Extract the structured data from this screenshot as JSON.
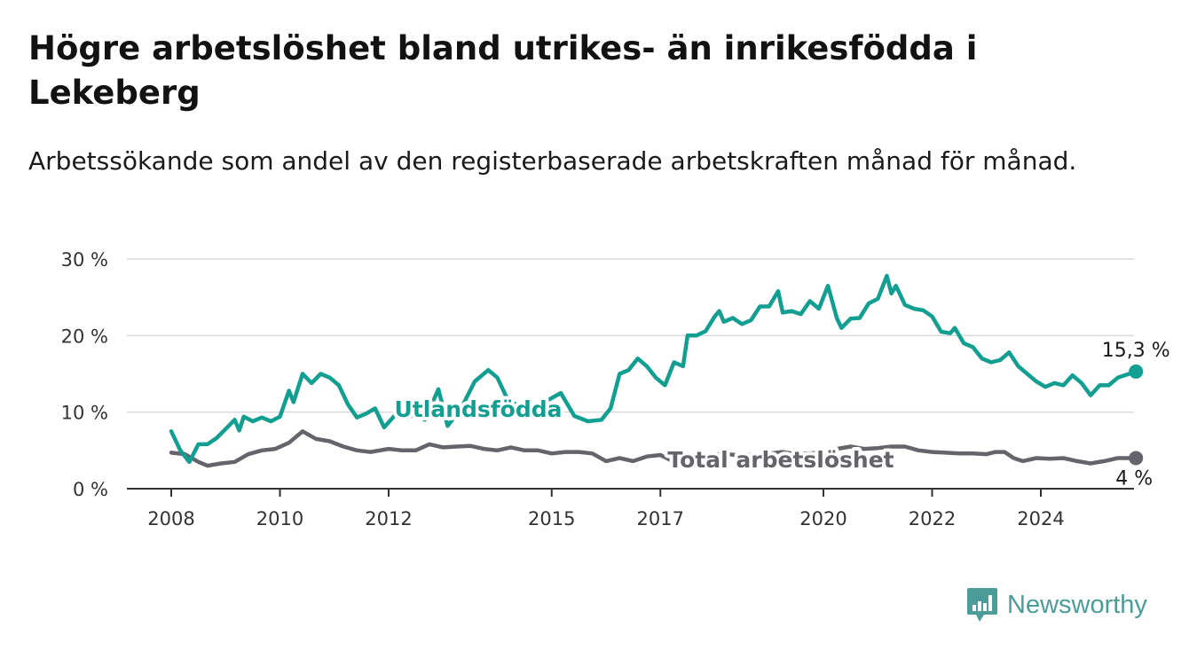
{
  "title": "Högre arbetslöshet bland utrikes- än inrikesfödda i Lekeberg",
  "subtitle": "Arbetssökande som andel av den registerbaserade arbetskraften månad för månad.",
  "brand": {
    "name": "Newsworthy",
    "icon": "newsworthy-logo-icon",
    "color": "#4c9c99"
  },
  "chart_data": {
    "type": "line",
    "title": "Högre arbetslöshet bland utrikes- än inrikesfödda i Lekeberg",
    "subtitle": "Arbetssökande som andel av den registerbaserade arbetskraften månad för månad.",
    "x_ticks": [
      "2008",
      "2010",
      "2012",
      "2015",
      "2017",
      "2020",
      "2022",
      "2024"
    ],
    "y_ticks": [
      "0 %",
      "10 %",
      "20 %",
      "30 %"
    ],
    "ylim": [
      0,
      30
    ],
    "xlim": [
      "2008-01",
      "2025-10"
    ],
    "grid": true,
    "series": [
      {
        "name": "Utlandsfödda",
        "color": "#139e92",
        "end_label": "15,3 %",
        "points": [
          [
            "2008-01",
            7.5
          ],
          [
            "2008-03",
            5.0
          ],
          [
            "2008-05",
            3.5
          ],
          [
            "2008-07",
            5.8
          ],
          [
            "2008-09",
            5.8
          ],
          [
            "2008-11",
            6.6
          ],
          [
            "2009-01",
            7.8
          ],
          [
            "2009-03",
            9.0
          ],
          [
            "2009-04",
            7.6
          ],
          [
            "2009-05",
            9.4
          ],
          [
            "2009-07",
            8.8
          ],
          [
            "2009-09",
            9.3
          ],
          [
            "2009-11",
            8.8
          ],
          [
            "2010-01",
            9.4
          ],
          [
            "2010-03",
            12.8
          ],
          [
            "2010-04",
            11.3
          ],
          [
            "2010-06",
            15.0
          ],
          [
            "2010-08",
            13.8
          ],
          [
            "2010-10",
            15.0
          ],
          [
            "2010-12",
            14.5
          ],
          [
            "2011-02",
            13.5
          ],
          [
            "2011-04",
            11.0
          ],
          [
            "2011-06",
            9.3
          ],
          [
            "2011-08",
            9.8
          ],
          [
            "2011-10",
            10.5
          ],
          [
            "2011-12",
            8.0
          ],
          [
            "2012-03",
            10.0
          ],
          [
            "2012-05",
            9.2
          ],
          [
            "2012-07",
            9.8
          ],
          [
            "2012-09",
            9.0
          ],
          [
            "2012-12",
            13.0
          ],
          [
            "2013-02",
            8.2
          ],
          [
            "2013-05",
            10.5
          ],
          [
            "2013-08",
            14.0
          ],
          [
            "2013-11",
            15.5
          ],
          [
            "2014-01",
            14.5
          ],
          [
            "2014-03",
            12.0
          ],
          [
            "2014-06",
            10.5
          ],
          [
            "2014-09",
            11.0
          ],
          [
            "2014-12",
            11.5
          ],
          [
            "2015-03",
            12.5
          ],
          [
            "2015-06",
            9.5
          ],
          [
            "2015-09",
            8.8
          ],
          [
            "2015-12",
            9.0
          ],
          [
            "2016-02",
            10.5
          ],
          [
            "2016-04",
            15.0
          ],
          [
            "2016-06",
            15.5
          ],
          [
            "2016-08",
            17.0
          ],
          [
            "2016-10",
            16.0
          ],
          [
            "2016-12",
            14.5
          ],
          [
            "2017-02",
            13.5
          ],
          [
            "2017-04",
            16.5
          ],
          [
            "2017-06",
            16.0
          ],
          [
            "2017-07",
            20.0
          ],
          [
            "2017-09",
            20.0
          ],
          [
            "2017-11",
            20.6
          ],
          [
            "2018-01",
            22.5
          ],
          [
            "2018-02",
            23.2
          ],
          [
            "2018-03",
            21.8
          ],
          [
            "2018-05",
            22.3
          ],
          [
            "2018-07",
            21.5
          ],
          [
            "2018-09",
            22.0
          ],
          [
            "2018-11",
            23.8
          ],
          [
            "2019-01",
            23.8
          ],
          [
            "2019-03",
            25.8
          ],
          [
            "2019-04",
            23.0
          ],
          [
            "2019-06",
            23.2
          ],
          [
            "2019-08",
            22.8
          ],
          [
            "2019-10",
            24.5
          ],
          [
            "2019-12",
            23.5
          ],
          [
            "2020-02",
            26.5
          ],
          [
            "2020-04",
            22.2
          ],
          [
            "2020-05",
            21.0
          ],
          [
            "2020-07",
            22.2
          ],
          [
            "2020-09",
            22.3
          ],
          [
            "2020-11",
            24.2
          ],
          [
            "2021-01",
            24.8
          ],
          [
            "2021-03",
            27.8
          ],
          [
            "2021-04",
            25.5
          ],
          [
            "2021-05",
            26.5
          ],
          [
            "2021-07",
            24.0
          ],
          [
            "2021-09",
            23.5
          ],
          [
            "2021-11",
            23.3
          ],
          [
            "2022-01",
            22.5
          ],
          [
            "2022-03",
            20.5
          ],
          [
            "2022-05",
            20.3
          ],
          [
            "2022-06",
            21.0
          ],
          [
            "2022-08",
            19.0
          ],
          [
            "2022-10",
            18.5
          ],
          [
            "2022-12",
            17.0
          ],
          [
            "2023-02",
            16.5
          ],
          [
            "2023-04",
            16.8
          ],
          [
            "2023-06",
            17.8
          ],
          [
            "2023-08",
            16.0
          ],
          [
            "2023-10",
            15.0
          ],
          [
            "2023-12",
            14.0
          ],
          [
            "2024-02",
            13.3
          ],
          [
            "2024-04",
            13.8
          ],
          [
            "2024-06",
            13.5
          ],
          [
            "2024-08",
            14.8
          ],
          [
            "2024-10",
            13.8
          ],
          [
            "2024-12",
            12.2
          ],
          [
            "2025-02",
            13.5
          ],
          [
            "2025-04",
            13.5
          ],
          [
            "2025-06",
            14.5
          ],
          [
            "2025-10",
            15.3
          ]
        ]
      },
      {
        "name": "Total arbetslöshet",
        "color": "#66646b",
        "end_label": "4 %",
        "points": [
          [
            "2008-01",
            4.7
          ],
          [
            "2008-04",
            4.5
          ],
          [
            "2008-07",
            3.5
          ],
          [
            "2008-09",
            3.0
          ],
          [
            "2008-12",
            3.3
          ],
          [
            "2009-03",
            3.5
          ],
          [
            "2009-06",
            4.5
          ],
          [
            "2009-09",
            5.0
          ],
          [
            "2009-12",
            5.2
          ],
          [
            "2010-03",
            6.0
          ],
          [
            "2010-06",
            7.5
          ],
          [
            "2010-09",
            6.5
          ],
          [
            "2010-12",
            6.2
          ],
          [
            "2011-03",
            5.5
          ],
          [
            "2011-06",
            5.0
          ],
          [
            "2011-09",
            4.8
          ],
          [
            "2012-01",
            5.2
          ],
          [
            "2012-04",
            5.0
          ],
          [
            "2012-07",
            5.0
          ],
          [
            "2012-10",
            5.8
          ],
          [
            "2013-01",
            5.4
          ],
          [
            "2013-04",
            5.5
          ],
          [
            "2013-07",
            5.6
          ],
          [
            "2013-10",
            5.2
          ],
          [
            "2014-01",
            5.0
          ],
          [
            "2014-04",
            5.4
          ],
          [
            "2014-07",
            5.0
          ],
          [
            "2014-10",
            5.0
          ],
          [
            "2015-01",
            4.6
          ],
          [
            "2015-04",
            4.8
          ],
          [
            "2015-07",
            4.8
          ],
          [
            "2015-10",
            4.6
          ],
          [
            "2016-01",
            3.6
          ],
          [
            "2016-04",
            4.0
          ],
          [
            "2016-07",
            3.6
          ],
          [
            "2016-10",
            4.2
          ],
          [
            "2017-01",
            4.4
          ],
          [
            "2017-04",
            3.5
          ],
          [
            "2017-07",
            4.2
          ],
          [
            "2017-10",
            4.3
          ],
          [
            "2018-01",
            4.5
          ],
          [
            "2018-04",
            4.5
          ],
          [
            "2018-07",
            4.3
          ],
          [
            "2018-10",
            4.5
          ],
          [
            "2019-01",
            4.6
          ],
          [
            "2019-04",
            4.8
          ],
          [
            "2019-07",
            4.5
          ],
          [
            "2019-10",
            4.6
          ],
          [
            "2020-01",
            4.8
          ],
          [
            "2020-04",
            5.2
          ],
          [
            "2020-07",
            5.5
          ],
          [
            "2020-10",
            5.2
          ],
          [
            "2021-01",
            5.3
          ],
          [
            "2021-04",
            5.5
          ],
          [
            "2021-07",
            5.5
          ],
          [
            "2021-10",
            5.0
          ],
          [
            "2022-01",
            4.8
          ],
          [
            "2022-04",
            4.7
          ],
          [
            "2022-07",
            4.6
          ],
          [
            "2022-10",
            4.6
          ],
          [
            "2023-01",
            4.5
          ],
          [
            "2023-03",
            4.8
          ],
          [
            "2023-05",
            4.8
          ],
          [
            "2023-07",
            4.0
          ],
          [
            "2023-09",
            3.6
          ],
          [
            "2023-12",
            4.0
          ],
          [
            "2024-03",
            3.9
          ],
          [
            "2024-06",
            4.0
          ],
          [
            "2024-09",
            3.6
          ],
          [
            "2024-12",
            3.3
          ],
          [
            "2025-03",
            3.6
          ],
          [
            "2025-06",
            4.0
          ],
          [
            "2025-10",
            4.0
          ]
        ]
      }
    ],
    "annotations": [
      {
        "text": "Utlandsfödda",
        "series": 0
      },
      {
        "text": "Total arbetslöshet",
        "series": 1
      }
    ]
  }
}
